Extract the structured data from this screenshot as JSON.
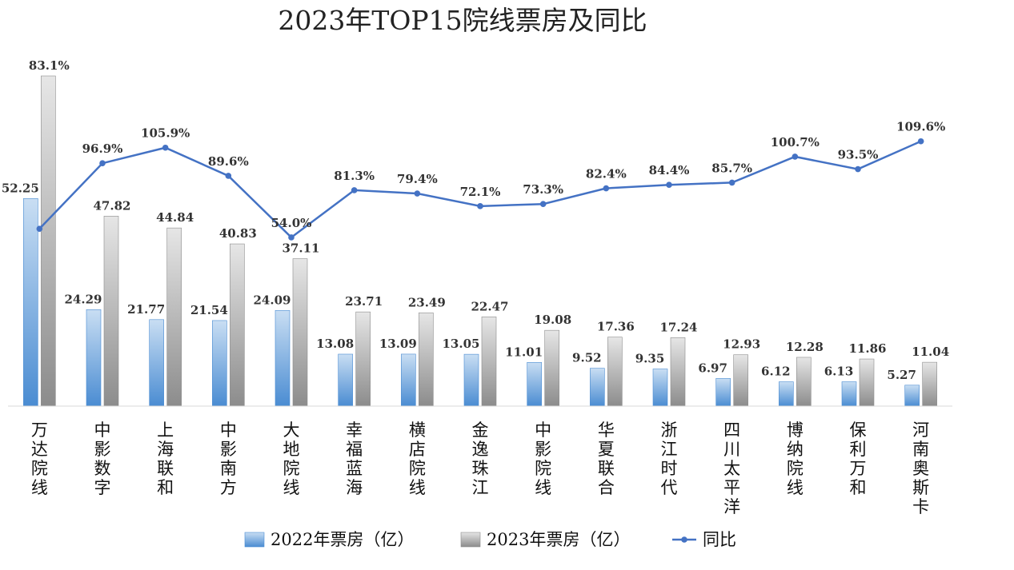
{
  "chart_data": {
    "type": "bar",
    "title": "2023年TOP15院线票房及同比",
    "categories": [
      "万达院线",
      "中影数字",
      "上海联和",
      "中影南方",
      "大地院线",
      "幸福蓝海",
      "横店院线",
      "金逸珠江",
      "中影院线",
      "华夏联合",
      "浙江时代",
      "四川太平洋",
      "博纳院线",
      "保利万和",
      "河南奥斯卡"
    ],
    "series": [
      {
        "name": "2022年票房（亿）",
        "type": "bar",
        "color": "#5b9bd5",
        "values": [
          52.25,
          24.29,
          21.77,
          21.54,
          24.09,
          13.08,
          13.09,
          13.05,
          11.01,
          9.52,
          9.35,
          6.97,
          6.12,
          6.13,
          5.27
        ],
        "labels": [
          "52.25",
          "24.29",
          "21.77",
          "21.54",
          "24.09",
          "13.08",
          "13.09",
          "13.05",
          "11.01",
          "9.52",
          "9.35",
          "6.97",
          "6.12",
          "6.13",
          "5.27"
        ]
      },
      {
        "name": "2023年票房（亿）",
        "type": "bar",
        "color": "#a6a6a6",
        "values": [
          83.1,
          47.82,
          44.84,
          40.83,
          37.11,
          23.71,
          23.49,
          22.47,
          19.08,
          17.36,
          17.24,
          12.93,
          12.28,
          11.86,
          11.04
        ],
        "labels": [
          "83.1%",
          "47.82",
          "44.84",
          "40.83",
          "37.11",
          "23.71",
          "23.49",
          "22.47",
          "19.08",
          "17.36",
          "17.24",
          "12.93",
          "12.28",
          "11.86",
          "11.04"
        ]
      },
      {
        "name": "同比",
        "type": "line",
        "color": "#4472c4",
        "values": [
          59.0,
          96.9,
          105.9,
          89.6,
          54.0,
          81.3,
          79.4,
          72.1,
          73.3,
          82.4,
          84.4,
          85.7,
          100.7,
          93.5,
          109.6
        ],
        "labels": [
          "",
          "96.9%",
          "105.9%",
          "89.6%",
          "54.0%",
          "81.3%",
          "79.4%",
          "72.1%",
          "73.3%",
          "82.4%",
          "84.4%",
          "85.7%",
          "100.7%",
          "93.5%",
          "109.6%"
        ]
      }
    ],
    "highlight_index": 12,
    "highlight_color": "#e00000",
    "legend_position": "bottom",
    "grid": false
  }
}
